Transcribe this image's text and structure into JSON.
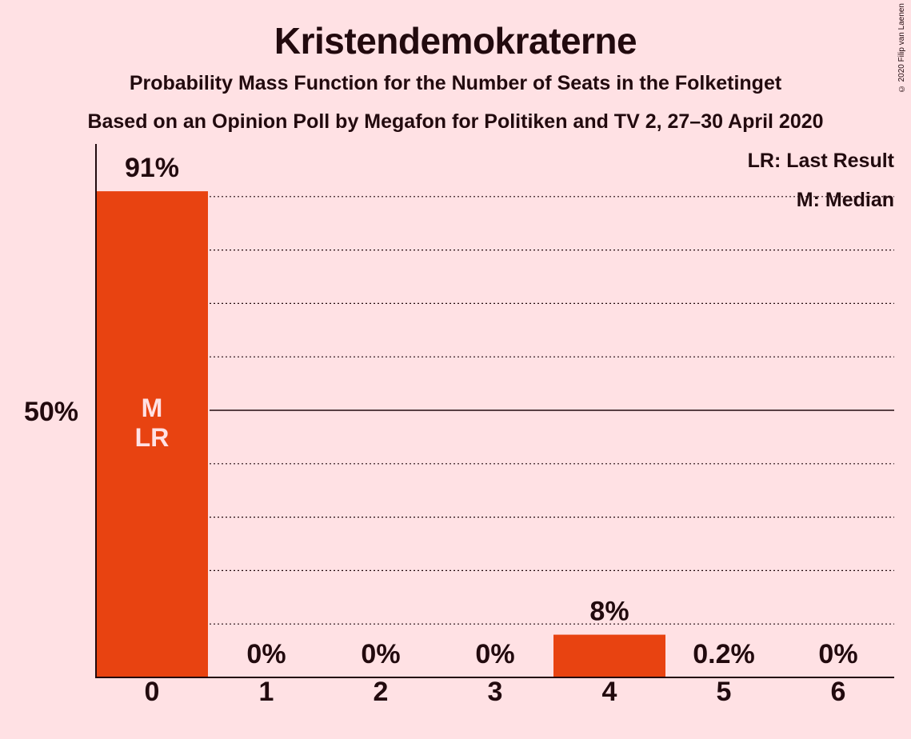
{
  "chart_data": {
    "type": "bar",
    "title": "Kristendemokraterne",
    "subtitle": "Probability Mass Function for the Number of Seats in the Folketinget",
    "subtitle2": "Based on an Opinion Poll by Megafon for Politiken and TV 2, 27–30 April 2020",
    "categories": [
      "0",
      "1",
      "2",
      "3",
      "4",
      "5",
      "6"
    ],
    "values": [
      91,
      0,
      0,
      0,
      8,
      0.2,
      0
    ],
    "value_labels": [
      "91%",
      "0%",
      "0%",
      "0%",
      "8%",
      "0.2%",
      "0%"
    ],
    "ylim": [
      0,
      100
    ],
    "yticks": [
      {
        "value": 50,
        "label": "50%"
      }
    ],
    "median_index": 0,
    "last_result_index": 0,
    "median_marker": "M",
    "last_result_marker": "LR",
    "legend": [
      "LR: Last Result",
      "M: Median"
    ],
    "legend_position": "top-right",
    "grid": "dotted every 10%",
    "bar_color": "#E84311",
    "background": "#FFE1E4"
  },
  "copyright": "© 2020 Filip van Laenen"
}
